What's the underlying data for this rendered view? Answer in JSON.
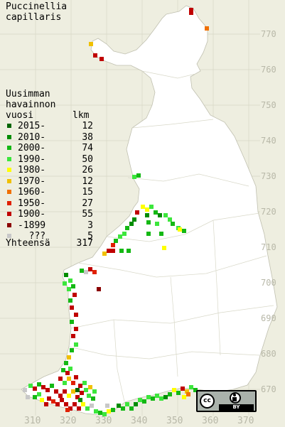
{
  "title": "Puccinellia\ncapillaris",
  "legend": {
    "heading": [
      "Uusimman",
      "havainnon",
      "vuosi"
    ],
    "count_header": "lkm",
    "rows": [
      {
        "label": "2015-",
        "count": "12",
        "color": "#006400"
      },
      {
        "label": "2010-",
        "count": "38",
        "color": "#008c00"
      },
      {
        "label": "2000-",
        "count": "74",
        "color": "#14b814"
      },
      {
        "label": "1990-",
        "count": "50",
        "color": "#3ce63c"
      },
      {
        "label": "1980-",
        "count": "26",
        "color": "#ffff00"
      },
      {
        "label": "1970-",
        "count": "12",
        "color": "#f0c000"
      },
      {
        "label": "1960-",
        "count": "15",
        "color": "#f07000"
      },
      {
        "label": "1950-",
        "count": "27",
        "color": "#e02000"
      },
      {
        "label": "1900-",
        "count": "55",
        "color": "#c00000"
      },
      {
        "label": "-1899",
        "count": "3",
        "color": "#8b0000"
      },
      {
        "label": "  ???",
        "count": "5",
        "color": "#c8c8c8"
      }
    ],
    "total_label": "Yhteensä",
    "total_count": "317"
  },
  "y_ticks": [
    "770",
    "760",
    "750",
    "740",
    "730",
    "720",
    "710",
    "700",
    "690",
    "680",
    "670"
  ],
  "x_ticks": [
    "310",
    "320",
    "330",
    "340",
    "350",
    "360",
    "370"
  ],
  "license_badge": {
    "cc": "cc",
    "by": "BY"
  }
}
